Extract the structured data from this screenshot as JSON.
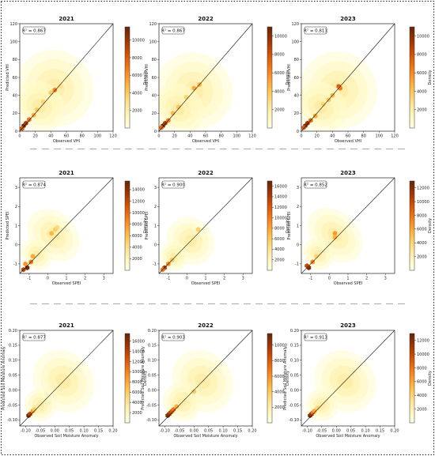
{
  "colors": {
    "frame": "#222222",
    "separator": "#aaaaaa",
    "identity_line": "#111111",
    "cmap": [
      "#ffffe5",
      "#fff7bc",
      "#fee391",
      "#fec44f",
      "#fe9929",
      "#ec7014",
      "#cc4c02",
      "#993404",
      "#662506"
    ]
  },
  "chart_data": [
    {
      "type": "heatmap",
      "row": 0,
      "col": 0,
      "title": "2021",
      "annotation": "R² = 0.867",
      "xlabel": "Observed VHI",
      "ylabel": "Predicted VHI",
      "colorbar_label": "Density",
      "xlim": [
        0,
        120
      ],
      "ylim": [
        0,
        120
      ],
      "xticks": [
        0,
        20,
        40,
        60,
        80,
        100,
        120
      ],
      "yticks": [
        0,
        20,
        40,
        60,
        80,
        100,
        120
      ],
      "cbar_max": 11500,
      "cbar_ticks": [
        2000,
        4000,
        6000,
        8000,
        10000
      ],
      "cloud": [
        {
          "x": 45,
          "y": 48,
          "sx": 22,
          "sy": 20
        },
        {
          "x": 25,
          "y": 28,
          "sx": 14,
          "sy": 14
        }
      ],
      "hot": [
        [
          5,
          6,
          11000
        ],
        [
          8,
          9,
          9500
        ],
        [
          12,
          13,
          7000
        ],
        [
          3,
          3,
          8000
        ],
        [
          18,
          18,
          5000
        ],
        [
          45,
          46,
          6500
        ],
        [
          40,
          43,
          4000
        ],
        [
          30,
          33,
          3500
        ],
        [
          52,
          50,
          3000
        ],
        [
          22,
          24,
          4000
        ]
      ]
    },
    {
      "type": "heatmap",
      "row": 0,
      "col": 1,
      "title": "2022",
      "annotation": "R² = 0.867",
      "xlabel": "Observed VHI",
      "ylabel": "Predicted VHI",
      "colorbar_label": "Density",
      "xlim": [
        0,
        120
      ],
      "ylim": [
        0,
        120
      ],
      "xticks": [
        0,
        20,
        40,
        60,
        80,
        100,
        120
      ],
      "yticks": [
        0,
        20,
        40,
        60,
        80,
        100,
        120
      ],
      "cbar_max": 11000,
      "cbar_ticks": [
        2000,
        4000,
        6000,
        8000,
        10000
      ],
      "cloud": [
        {
          "x": 45,
          "y": 45,
          "sx": 22,
          "sy": 20
        },
        {
          "x": 25,
          "y": 25,
          "sx": 14,
          "sy": 14
        }
      ],
      "hot": [
        [
          5,
          6,
          10500
        ],
        [
          8,
          9,
          9000
        ],
        [
          12,
          12,
          6500
        ],
        [
          3,
          4,
          7000
        ],
        [
          18,
          20,
          4500
        ],
        [
          45,
          48,
          5000
        ],
        [
          52,
          52,
          4500
        ],
        [
          35,
          38,
          3500
        ],
        [
          25,
          27,
          4000
        ]
      ]
    },
    {
      "type": "heatmap",
      "row": 0,
      "col": 2,
      "title": "2023",
      "annotation": "R² = 0.813",
      "xlabel": "Observed VHI",
      "ylabel": "Predicted VHI",
      "colorbar_label": "Density",
      "xlim": [
        0,
        120
      ],
      "ylim": [
        0,
        120
      ],
      "xticks": [
        0,
        20,
        40,
        60,
        80,
        100,
        120
      ],
      "yticks": [
        0,
        20,
        40,
        60,
        80,
        100,
        120
      ],
      "cbar_max": 11000,
      "cbar_ticks": [
        2000,
        4000,
        6000,
        8000,
        10000
      ],
      "cloud": [
        {
          "x": 48,
          "y": 46,
          "sx": 22,
          "sy": 20
        },
        {
          "x": 25,
          "y": 27,
          "sx": 14,
          "sy": 14
        }
      ],
      "hot": [
        [
          5,
          6,
          10000
        ],
        [
          8,
          9,
          9500
        ],
        [
          12,
          12,
          7000
        ],
        [
          3,
          4,
          7500
        ],
        [
          18,
          17,
          5000
        ],
        [
          48,
          50,
          7500
        ],
        [
          50,
          48,
          6500
        ],
        [
          40,
          40,
          4500
        ],
        [
          35,
          35,
          4000
        ],
        [
          28,
          30,
          3500
        ]
      ]
    },
    {
      "type": "heatmap",
      "row": 1,
      "col": 0,
      "title": "2021",
      "annotation": "R² = 0.874",
      "xlabel": "Observed SPEI",
      "ylabel": "Predicted SPEI",
      "colorbar_label": "Density",
      "xlim": [
        -1.5,
        3.5
      ],
      "ylim": [
        -1.5,
        3.5
      ],
      "xticks": [
        -1,
        0,
        1,
        2,
        3
      ],
      "yticks": [
        -1,
        0,
        1,
        2,
        3
      ],
      "cbar_max": 15500,
      "cbar_ticks": [
        2000,
        4000,
        6000,
        8000,
        10000,
        12000,
        14000
      ],
      "cloud": [
        {
          "x": 0.3,
          "y": 0.5,
          "sx": 0.55,
          "sy": 0.7
        },
        {
          "x": -0.6,
          "y": -0.5,
          "sx": 0.35,
          "sy": 0.4
        }
      ],
      "hot": [
        [
          -1.1,
          -1.2,
          15000
        ],
        [
          -1.3,
          -1.3,
          12000
        ],
        [
          -0.9,
          -0.9,
          9000
        ],
        [
          -0.8,
          -0.6,
          7000
        ],
        [
          0.2,
          0.6,
          6500
        ],
        [
          0.4,
          0.8,
          5500
        ],
        [
          0.5,
          0.9,
          4500
        ],
        [
          -1.2,
          -1.0,
          8000
        ]
      ]
    },
    {
      "type": "heatmap",
      "row": 1,
      "col": 1,
      "title": "2022",
      "annotation": "R² = 0.900",
      "xlabel": "Observed SPEI",
      "ylabel": "Predicted SPEI",
      "colorbar_label": "Density",
      "xlim": [
        -1.5,
        3.5
      ],
      "ylim": [
        -1.5,
        3.5
      ],
      "xticks": [
        -1,
        0,
        1,
        2,
        3
      ],
      "yticks": [
        -1,
        0,
        1,
        2,
        3
      ],
      "cbar_max": 17000,
      "cbar_ticks": [
        2000,
        4000,
        6000,
        8000,
        10000,
        12000,
        14000,
        16000
      ],
      "cloud": [
        {
          "x": 0.2,
          "y": 0.2,
          "sx": 0.55,
          "sy": 0.6
        },
        {
          "x": -0.7,
          "y": -0.6,
          "sx": 0.35,
          "sy": 0.35
        }
      ],
      "hot": [
        [
          -1.2,
          -1.2,
          14000
        ],
        [
          -1.0,
          -1.0,
          9000
        ],
        [
          -0.8,
          -0.8,
          6000
        ],
        [
          0.6,
          0.8,
          5500
        ],
        [
          0.3,
          0.4,
          3500
        ],
        [
          -1.3,
          -1.3,
          10000
        ]
      ]
    },
    {
      "type": "heatmap",
      "row": 1,
      "col": 2,
      "title": "2023",
      "annotation": "R² = 0.852",
      "xlabel": "Observed SPEI",
      "ylabel": "Predicted SPEI",
      "colorbar_label": "Density",
      "xlim": [
        -1.5,
        3.5
      ],
      "ylim": [
        -1.5,
        3.5
      ],
      "xticks": [
        -1,
        0,
        1,
        2,
        3
      ],
      "yticks": [
        -1,
        0,
        1,
        2,
        3
      ],
      "cbar_max": 13000,
      "cbar_ticks": [
        2000,
        4000,
        6000,
        8000,
        10000,
        12000
      ],
      "cloud": [
        {
          "x": 0.3,
          "y": 0.5,
          "sx": 0.55,
          "sy": 0.75
        },
        {
          "x": -0.6,
          "y": -0.5,
          "sx": 0.35,
          "sy": 0.4
        }
      ],
      "hot": [
        [
          -1.1,
          -1.2,
          12500
        ],
        [
          -1.2,
          -1.1,
          10000
        ],
        [
          -0.9,
          -0.9,
          7000
        ],
        [
          0.3,
          0.6,
          6500
        ],
        [
          0.3,
          0.4,
          5500
        ],
        [
          -0.7,
          -0.6,
          4000
        ]
      ]
    },
    {
      "type": "heatmap",
      "row": 2,
      "col": 0,
      "title": "2021",
      "annotation": "R² = 0.877",
      "xlabel": "Observed Soil Moisture Anomaly",
      "ylabel": "Predicted Soil Moisture Anomaly",
      "colorbar_label": "Density",
      "xlim": [
        -0.12,
        0.2
      ],
      "ylim": [
        -0.12,
        0.2
      ],
      "xticks": [
        -0.1,
        -0.05,
        0.0,
        0.05,
        0.1,
        0.15,
        0.2
      ],
      "yticks": [
        -0.1,
        -0.05,
        0.0,
        0.05,
        0.1,
        0.15,
        0.2
      ],
      "cbar_max": 17500,
      "cbar_ticks": [
        2000,
        4000,
        6000,
        8000,
        10000,
        12000,
        14000,
        16000
      ],
      "cloud": [
        {
          "x": 0.03,
          "y": 0.03,
          "sx": 0.045,
          "sy": 0.05
        },
        {
          "x": -0.05,
          "y": -0.05,
          "sx": 0.025,
          "sy": 0.025
        }
      ],
      "hot": [
        [
          -0.09,
          -0.085,
          17000
        ],
        [
          -0.085,
          -0.08,
          14000
        ],
        [
          -0.075,
          -0.07,
          9000
        ],
        [
          -0.07,
          -0.065,
          6000
        ],
        [
          -0.06,
          -0.055,
          3500
        ]
      ]
    },
    {
      "type": "heatmap",
      "row": 2,
      "col": 1,
      "title": "2022",
      "annotation": "R² = 0.903",
      "xlabel": "Observed Soil Moisture Anomaly",
      "ylabel": "Predicted Soil Moisture Anomaly",
      "colorbar_label": "Density",
      "xlim": [
        -0.12,
        0.2
      ],
      "ylim": [
        -0.12,
        0.2
      ],
      "xticks": [
        -0.1,
        -0.05,
        0.0,
        0.05,
        0.1,
        0.15,
        0.2
      ],
      "yticks": [
        -0.1,
        -0.05,
        0.0,
        0.05,
        0.1,
        0.15,
        0.2
      ],
      "cbar_max": 11500,
      "cbar_ticks": [
        2000,
        4000,
        6000,
        8000,
        10000
      ],
      "cloud": [
        {
          "x": 0.03,
          "y": 0.03,
          "sx": 0.045,
          "sy": 0.05
        },
        {
          "x": -0.04,
          "y": -0.04,
          "sx": 0.03,
          "sy": 0.03
        }
      ],
      "hot": [
        [
          -0.09,
          -0.085,
          11000
        ],
        [
          -0.085,
          -0.08,
          10000
        ],
        [
          -0.08,
          -0.075,
          9000
        ],
        [
          -0.075,
          -0.07,
          8000
        ],
        [
          -0.07,
          -0.065,
          7000
        ],
        [
          -0.06,
          -0.055,
          5000
        ],
        [
          0.0,
          -0.005,
          4000
        ]
      ]
    },
    {
      "type": "heatmap",
      "row": 2,
      "col": 2,
      "title": "2023",
      "annotation": "R² = 0.913",
      "xlabel": "Observed Soil Moisture Anomaly",
      "ylabel": "Predicted Soil Moisture Anomaly",
      "colorbar_label": "Density",
      "xlim": [
        -0.12,
        0.2
      ],
      "ylim": [
        -0.12,
        0.2
      ],
      "xticks": [
        -0.1,
        -0.05,
        0.0,
        0.05,
        0.1,
        0.15,
        0.2
      ],
      "yticks": [
        -0.1,
        -0.05,
        0.0,
        0.05,
        0.1,
        0.15,
        0.2
      ],
      "cbar_max": 13000,
      "cbar_ticks": [
        2000,
        4000,
        6000,
        8000,
        10000,
        12000
      ],
      "cloud": [
        {
          "x": 0.03,
          "y": 0.03,
          "sx": 0.045,
          "sy": 0.05
        },
        {
          "x": -0.05,
          "y": -0.05,
          "sx": 0.025,
          "sy": 0.025
        }
      ],
      "hot": [
        [
          -0.09,
          -0.085,
          12500
        ],
        [
          -0.085,
          -0.08,
          11000
        ],
        [
          -0.08,
          -0.075,
          8000
        ],
        [
          -0.075,
          -0.07,
          6000
        ],
        [
          -0.065,
          -0.06,
          4000
        ]
      ]
    }
  ]
}
